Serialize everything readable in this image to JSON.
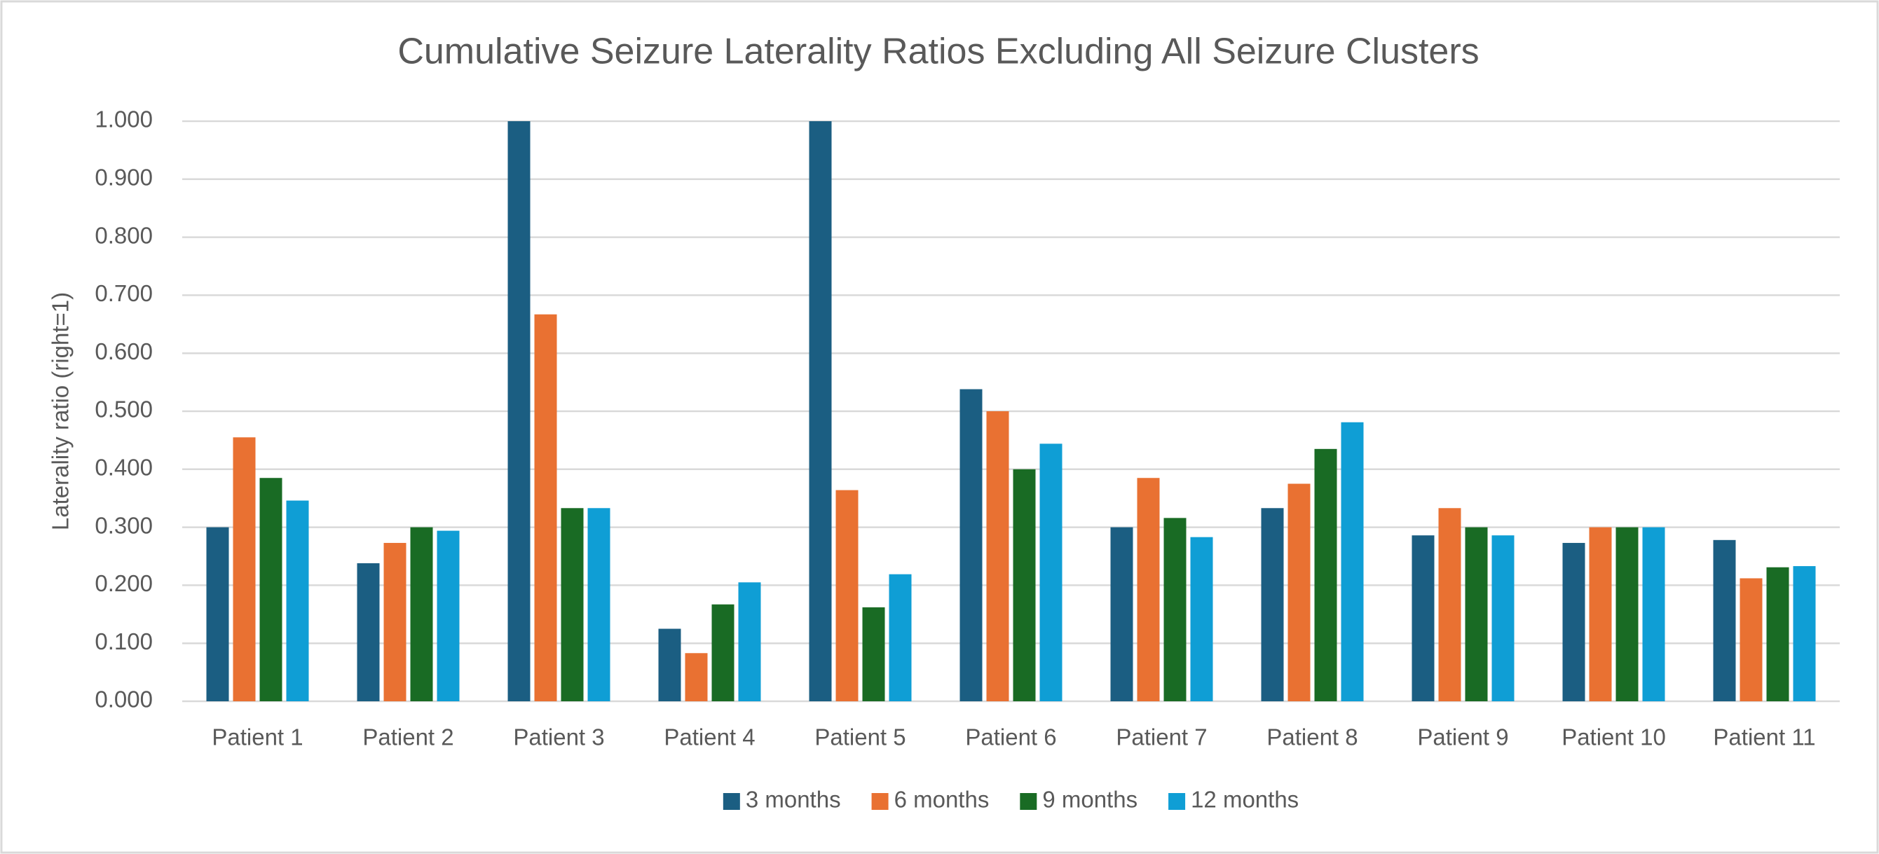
{
  "chart_data": {
    "type": "bar",
    "title": "Cumulative Seizure Laterality Ratios Excluding All Seizure Clusters",
    "y_label": "Laterality ratio (right=1)",
    "categories": [
      "Patient 1",
      "Patient 2",
      "Patient 3",
      "Patient 4",
      "Patient 5",
      "Patient 6",
      "Patient 7",
      "Patient 8",
      "Patient 9",
      "Patient 10",
      "Patient 11"
    ],
    "series": [
      {
        "name": "3 months",
        "color": "#1b5e82",
        "values": [
          0.3,
          0.238,
          1.0,
          0.125,
          1.0,
          0.538,
          0.3,
          0.333,
          0.286,
          0.273,
          0.278
        ]
      },
      {
        "name": "6 months",
        "color": "#e97132",
        "values": [
          0.455,
          0.273,
          0.667,
          0.083,
          0.364,
          0.5,
          0.385,
          0.375,
          0.333,
          0.3,
          0.212
        ]
      },
      {
        "name": "9 months",
        "color": "#196b24",
        "values": [
          0.385,
          0.3,
          0.333,
          0.167,
          0.162,
          0.4,
          0.316,
          0.435,
          0.3,
          0.3,
          0.231
        ]
      },
      {
        "name": "12 months",
        "color": "#0f9ed5",
        "values": [
          0.346,
          0.294,
          0.333,
          0.205,
          0.219,
          0.444,
          0.283,
          0.481,
          0.286,
          0.3,
          0.233
        ]
      }
    ],
    "ylim": [
      0,
      1
    ],
    "yticks": [
      {
        "value": 0,
        "label": "0.000"
      },
      {
        "value": 0.1,
        "label": "0.100"
      },
      {
        "value": 0.2,
        "label": "0.200"
      },
      {
        "value": 0.3,
        "label": "0.300"
      },
      {
        "value": 0.4,
        "label": "0.400"
      },
      {
        "value": 0.5,
        "label": "0.500"
      },
      {
        "value": 0.6,
        "label": "0.600"
      },
      {
        "value": 0.7,
        "label": "0.700"
      },
      {
        "value": 0.8,
        "label": "0.800"
      },
      {
        "value": 0.9,
        "label": "0.900"
      },
      {
        "value": 1,
        "label": "1.000"
      }
    ],
    "grid": true,
    "legend": "bottom"
  }
}
